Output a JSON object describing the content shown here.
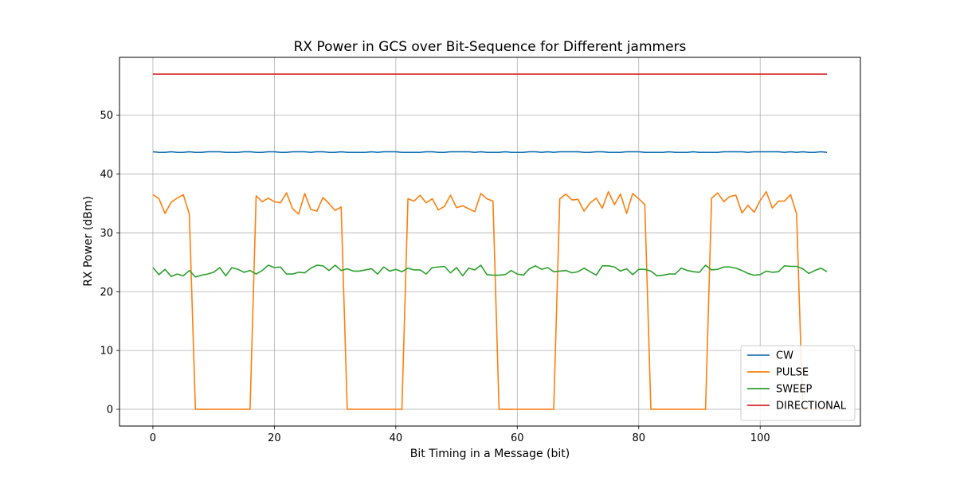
{
  "chart_data": {
    "type": "line",
    "title": "RX Power in GCS over Bit-Sequence for Different jammers",
    "xlabel": "Bit Timing in a Message (bit)",
    "ylabel": "RX Power (dBm)",
    "xlim": [
      -5.5,
      116.5
    ],
    "ylim": [
      -2.85,
      59.85
    ],
    "xticks": [
      0,
      20,
      40,
      60,
      80,
      100
    ],
    "yticks": [
      0,
      10,
      20,
      30,
      40,
      50
    ],
    "grid": true,
    "legend": "lower right",
    "series": [
      {
        "name": "CW",
        "color": "#1f77b4",
        "x0": 0,
        "values": [
          43.8,
          43.7,
          43.7,
          43.8,
          43.7,
          43.7,
          43.8,
          43.7,
          43.7,
          43.8,
          43.8,
          43.8,
          43.7,
          43.7,
          43.7,
          43.8,
          43.8,
          43.7,
          43.7,
          43.8,
          43.8,
          43.7,
          43.7,
          43.8,
          43.8,
          43.8,
          43.7,
          43.8,
          43.8,
          43.7,
          43.7,
          43.8,
          43.7,
          43.7,
          43.7,
          43.7,
          43.8,
          43.7,
          43.8,
          43.8,
          43.8,
          43.7,
          43.7,
          43.7,
          43.7,
          43.8,
          43.8,
          43.7,
          43.7,
          43.8,
          43.8,
          43.8,
          43.8,
          43.7,
          43.8,
          43.7,
          43.7,
          43.7,
          43.8,
          43.7,
          43.7,
          43.7,
          43.8,
          43.8,
          43.7,
          43.8,
          43.7,
          43.8,
          43.8,
          43.8,
          43.8,
          43.7,
          43.7,
          43.8,
          43.8,
          43.7,
          43.7,
          43.7,
          43.8,
          43.8,
          43.8,
          43.7,
          43.7,
          43.7,
          43.7,
          43.8,
          43.7,
          43.7,
          43.7,
          43.8,
          43.7,
          43.7,
          43.7,
          43.7,
          43.8,
          43.8,
          43.8,
          43.8,
          43.7,
          43.8,
          43.8,
          43.8,
          43.8,
          43.8,
          43.7,
          43.8,
          43.7,
          43.8,
          43.7,
          43.7,
          43.8,
          43.7
        ]
      },
      {
        "name": "PULSE",
        "color": "#ff7f0e",
        "x0": 0,
        "values": [
          36.5,
          35.8,
          33.3,
          35.2,
          35.9,
          36.5,
          33.2,
          0,
          0,
          0,
          0,
          0,
          0,
          0,
          0,
          0,
          0,
          36.3,
          35.3,
          35.9,
          35.3,
          35.1,
          36.8,
          34.1,
          33.2,
          36.7,
          34,
          33.7,
          36,
          35,
          33.8,
          34.4,
          0,
          0,
          0,
          0,
          0,
          0,
          0,
          0,
          0,
          0,
          35.8,
          35.4,
          36.4,
          35.1,
          35.8,
          33.9,
          34.5,
          36.4,
          34.3,
          34.6,
          34.1,
          33.6,
          36.7,
          35.8,
          35.4,
          0,
          0,
          0,
          0,
          0,
          0,
          0,
          0,
          0,
          0,
          35.8,
          36.6,
          35.6,
          35.7,
          33.7,
          35.1,
          35.9,
          34.2,
          37,
          34.8,
          36.6,
          33.3,
          36.7,
          35.8,
          34.8,
          0,
          0,
          0,
          0,
          0,
          0,
          0,
          0,
          0,
          0,
          35.9,
          36.8,
          35.3,
          36.2,
          36.4,
          33.4,
          34.7,
          33.5,
          35.5,
          37,
          34.2,
          35.4,
          35.4,
          36.5,
          33.2,
          0,
          0,
          0,
          0,
          0
        ]
      },
      {
        "name": "SWEEP",
        "color": "#2ca02c",
        "x0": 0,
        "values": [
          24.1,
          22.9,
          23.8,
          22.6,
          23,
          22.7,
          23.6,
          22.5,
          22.8,
          23,
          23.3,
          24.1,
          22.7,
          24.1,
          23.8,
          23.3,
          23.6,
          23,
          23.6,
          24.5,
          24.1,
          24.2,
          23,
          23,
          23.3,
          23.2,
          24,
          24.5,
          24.4,
          23.6,
          24.5,
          23.6,
          23.9,
          23.5,
          23.5,
          23.7,
          23.9,
          23,
          24.2,
          23.5,
          23.8,
          23.4,
          24,
          23.7,
          23.7,
          23,
          24.1,
          24.2,
          24.3,
          23.2,
          24.1,
          22.7,
          24,
          23.7,
          24.5,
          22.9,
          22.8,
          22.8,
          22.9,
          23.6,
          23,
          22.8,
          23.9,
          24.4,
          23.8,
          24.1,
          23.4,
          23.5,
          23.6,
          23.2,
          23.4,
          24,
          23.4,
          22.8,
          24.4,
          24.4,
          24.2,
          23.5,
          23.9,
          22.9,
          23.8,
          23.8,
          23.5,
          22.7,
          22.8,
          23,
          23,
          24,
          23.6,
          23.4,
          23.3,
          24.5,
          23.7,
          23.8,
          24.2,
          24.2,
          24,
          23.6,
          23.1,
          22.8,
          22.9,
          23.5,
          23.3,
          23.4,
          24.4,
          24.3,
          24.3,
          23.9,
          23.1,
          23.6,
          24,
          23.4
        ]
      },
      {
        "name": "DIRECTIONAL",
        "color": "#d62728",
        "x0": 0,
        "constant": 57.0,
        "count": 112
      }
    ]
  }
}
